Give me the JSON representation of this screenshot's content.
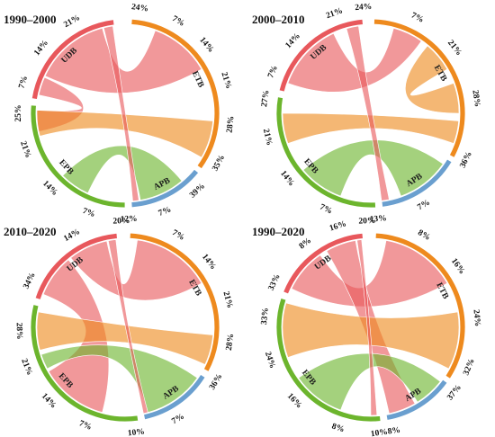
{
  "colors": {
    "UDB": "#e8585c",
    "ETB": "#ee8a1e",
    "APB": "#6a9fcf",
    "EPB": "#6cb52d"
  },
  "chart_data": [
    {
      "type": "chord",
      "title": "1990–2000",
      "segments": [
        {
          "name": "UDB",
          "start": 279,
          "end": 353,
          "ticks": [
            {
              "angle": 287,
              "label": "7%"
            },
            {
              "angle": 308,
              "label": "14%"
            },
            {
              "angle": 330,
              "label": "21%"
            }
          ]
        },
        {
          "name": "ETB",
          "start": 4,
          "end": 126,
          "ticks": [
            {
              "angle": 8,
              "label": "24%"
            },
            {
              "angle": 30,
              "label": "7%"
            },
            {
              "angle": 50,
              "label": "14%"
            },
            {
              "angle": 72,
              "label": "21%"
            },
            {
              "angle": 96,
              "label": "28%"
            },
            {
              "angle": 118,
              "label": "35%"
            }
          ]
        },
        {
          "name": "APB",
          "start": 129,
          "end": 176,
          "ticks": [
            {
              "angle": 137,
              "label": "39%"
            },
            {
              "angle": 158,
              "label": "7%"
            },
            {
              "angle": 178,
              "label": "12%"
            }
          ]
        },
        {
          "name": "EPB",
          "start": 180,
          "end": 275,
          "ticks": [
            {
              "angle": 200,
              "label": "7%"
            },
            {
              "angle": 225,
              "label": "14%"
            },
            {
              "angle": 250,
              "label": "21%"
            },
            {
              "angle": 270,
              "label": "25%"
            }
          ]
        }
      ],
      "chords": [
        {
          "source": "UDB",
          "target": "ETB",
          "src": [
            295,
            345
          ],
          "dst": [
            20,
            60
          ]
        },
        {
          "source": "UDB",
          "target": "EPB",
          "src": [
            282,
            294
          ],
          "dst": [
            258,
            272
          ]
        },
        {
          "source": "ETB",
          "target": "EPB",
          "src": [
            95,
            120
          ],
          "dst": [
            255,
            272
          ]
        },
        {
          "source": "EPB",
          "target": "APB",
          "src": [
            205,
            225
          ],
          "dst": [
            140,
            170
          ]
        },
        {
          "source": "UDB",
          "target": "APB",
          "src": [
            346,
            352
          ],
          "dst": [
            171,
            175
          ]
        }
      ]
    },
    {
      "type": "chord",
      "title": "2000–2010",
      "segments": [
        {
          "name": "UDB",
          "start": 284,
          "end": 355,
          "ticks": [
            {
              "angle": 293,
              "label": "7%"
            },
            {
              "angle": 313,
              "label": "14%"
            },
            {
              "angle": 340,
              "label": "21%"
            }
          ]
        },
        {
          "name": "ETB",
          "start": 2,
          "end": 118,
          "ticks": [
            {
              "angle": 356,
              "label": "24%"
            },
            {
              "angle": 26,
              "label": "7%"
            },
            {
              "angle": 52,
              "label": "21%"
            },
            {
              "angle": 82,
              "label": "28%"
            },
            {
              "angle": 116,
              "label": "36%"
            }
          ]
        },
        {
          "name": "APB",
          "start": 121,
          "end": 173,
          "ticks": [
            {
              "angle": 150,
              "label": "7%"
            },
            {
              "angle": 176,
              "label": "13%"
            }
          ]
        },
        {
          "name": "EPB",
          "start": 177,
          "end": 280,
          "ticks": [
            {
              "angle": 205,
              "label": "7%"
            },
            {
              "angle": 232,
              "label": "14%"
            },
            {
              "angle": 257,
              "label": "21%"
            },
            {
              "angle": 278,
              "label": "27%"
            }
          ]
        }
      ],
      "chords": [
        {
          "source": "UDB",
          "target": "ETB",
          "src": [
            290,
            335
          ],
          "dst": [
            15,
            35
          ]
        },
        {
          "source": "ETB",
          "target": "EPB",
          "src": [
            95,
            110
          ],
          "dst": [
            250,
            270
          ]
        },
        {
          "source": "ETB",
          "target": "ETB",
          "src": [
            40,
            60
          ],
          "dst": [
            70,
            90
          ]
        },
        {
          "source": "EPB",
          "target": "APB",
          "src": [
            200,
            230
          ],
          "dst": [
            125,
            160
          ]
        },
        {
          "source": "UDB",
          "target": "APB",
          "src": [
            344,
            352
          ],
          "dst": [
            168,
            173
          ]
        }
      ]
    },
    {
      "type": "chord",
      "title": "2010–2020",
      "segments": [
        {
          "name": "UDB",
          "start": 288,
          "end": 355,
          "ticks": [
            {
              "angle": 296,
              "label": "34%"
            },
            {
              "angle": 330,
              "label": "14%"
            },
            {
              "angle": 358,
              "label": "20%"
            }
          ]
        },
        {
          "name": "ETB",
          "start": 3,
          "end": 118,
          "ticks": [
            {
              "angle": 30,
              "label": "7%"
            },
            {
              "angle": 52,
              "label": "14%"
            },
            {
              "angle": 75,
              "label": "21%"
            },
            {
              "angle": 98,
              "label": "28%"
            },
            {
              "angle": 121,
              "label": "36%"
            }
          ]
        },
        {
          "name": "APB",
          "start": 122,
          "end": 168,
          "ticks": [
            {
              "angle": 150,
              "label": "7%"
            },
            {
              "angle": 174,
              "label": "10%"
            }
          ]
        },
        {
          "name": "EPB",
          "start": 172,
          "end": 284,
          "ticks": [
            {
              "angle": 202,
              "label": "7%"
            },
            {
              "angle": 226,
              "label": "14%"
            },
            {
              "angle": 248,
              "label": "21%"
            },
            {
              "angle": 268,
              "label": "28%"
            }
          ]
        }
      ],
      "chords": [
        {
          "source": "UDB",
          "target": "EPB",
          "src": [
            292,
            320
          ],
          "dst": [
            195,
            240
          ]
        },
        {
          "source": "UDB",
          "target": "ETB",
          "src": [
            322,
            348
          ],
          "dst": [
            8,
            60
          ]
        },
        {
          "source": "ETB",
          "target": "EPB",
          "src": [
            95,
            115
          ],
          "dst": [
            255,
            280
          ]
        },
        {
          "source": "EPB",
          "target": "APB",
          "src": [
            242,
            252
          ],
          "dst": [
            125,
            165
          ]
        },
        {
          "source": "UDB",
          "target": "APB",
          "src": [
            349,
            354
          ],
          "dst": [
            165,
            168
          ]
        }
      ]
    },
    {
      "type": "chord",
      "title": "1990–2020",
      "segments": [
        {
          "name": "UDB",
          "start": 292,
          "end": 355,
          "ticks": [
            {
              "angle": 295,
              "label": "33%"
            },
            {
              "angle": 322,
              "label": "8%"
            },
            {
              "angle": 342,
              "label": "16%"
            },
            {
              "angle": 358,
              "label": "20%"
            }
          ]
        },
        {
          "name": "ETB",
          "start": 3,
          "end": 123,
          "ticks": [
            {
              "angle": 30,
              "label": "8%"
            },
            {
              "angle": 55,
              "label": "16%"
            },
            {
              "angle": 85,
              "label": "24%"
            },
            {
              "angle": 112,
              "label": "32%"
            },
            {
              "angle": 128,
              "label": "37%"
            }
          ]
        },
        {
          "name": "APB",
          "start": 126,
          "end": 170,
          "ticks": [
            {
              "angle": 172,
              "label": "10%8%"
            }
          ]
        },
        {
          "name": "EPB",
          "start": 174,
          "end": 288,
          "ticks": [
            {
              "angle": 198,
              "label": "8%"
            },
            {
              "angle": 226,
              "label": "16%"
            },
            {
              "angle": 252,
              "label": "24%"
            },
            {
              "angle": 276,
              "label": "33%"
            }
          ]
        }
      ],
      "chords": [
        {
          "source": "UDB",
          "target": "ETB",
          "src": [
            296,
            325
          ],
          "dst": [
            10,
            60
          ]
        },
        {
          "source": "UDB",
          "target": "APB",
          "src": [
            330,
            350
          ],
          "dst": [
            150,
            168
          ]
        },
        {
          "source": "ETB",
          "target": "EPB",
          "src": [
            80,
            118
          ],
          "dst": [
            250,
            286
          ]
        },
        {
          "source": "EPB",
          "target": "APB",
          "src": [
            200,
            235
          ],
          "dst": [
            128,
            148
          ]
        },
        {
          "source": "UDB",
          "target": "EPB",
          "src": [
            351,
            354
          ],
          "dst": [
            176,
            180
          ]
        }
      ]
    }
  ]
}
